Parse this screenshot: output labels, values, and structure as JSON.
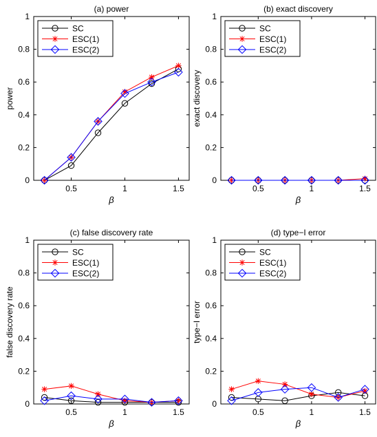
{
  "chart_data": [
    {
      "type": "line",
      "title": "(a) power",
      "xlabel": "β",
      "ylabel": "power",
      "xlim": [
        0.15,
        1.6
      ],
      "ylim": [
        0,
        1
      ],
      "xticks": [
        0.5,
        1,
        1.5
      ],
      "xtick_labels": [
        "0.5",
        "1",
        "1.5"
      ],
      "yticks": [
        0,
        0.2,
        0.4,
        0.6,
        0.8,
        1
      ],
      "ytick_labels": [
        "0",
        "0.2",
        "0.4",
        "0.6",
        "0.8",
        "1"
      ],
      "legend_position": "top-left",
      "grid": false,
      "x": [
        0.25,
        0.5,
        0.75,
        1,
        1.25,
        1.5
      ],
      "series": [
        {
          "name": "SC",
          "color": "#000000",
          "marker": "circle",
          "values": [
            0.0,
            0.09,
            0.29,
            0.47,
            0.59,
            0.68
          ]
        },
        {
          "name": "ESC(1)",
          "color": "#ff0000",
          "marker": "star",
          "values": [
            0.0,
            0.14,
            0.36,
            0.54,
            0.63,
            0.7
          ]
        },
        {
          "name": "ESC(2)",
          "color": "#0000ff",
          "marker": "diamond",
          "values": [
            0.0,
            0.14,
            0.36,
            0.53,
            0.6,
            0.66
          ]
        }
      ]
    },
    {
      "type": "line",
      "title": "(b) exact discovery",
      "xlabel": "β",
      "ylabel": "exact discovery",
      "xlim": [
        0.15,
        1.6
      ],
      "ylim": [
        0,
        1
      ],
      "xticks": [
        0.5,
        1,
        1.5
      ],
      "xtick_labels": [
        "0.5",
        "1",
        "1.5"
      ],
      "yticks": [
        0,
        0.2,
        0.4,
        0.6,
        0.8,
        1
      ],
      "ytick_labels": [
        "0",
        "0.2",
        "0.4",
        "0.6",
        "0.8",
        "1"
      ],
      "legend_position": "top-left",
      "grid": false,
      "x": [
        0.25,
        0.5,
        0.75,
        1,
        1.25,
        1.5
      ],
      "series": [
        {
          "name": "SC",
          "color": "#000000",
          "marker": "circle",
          "values": [
            0,
            0,
            0,
            0,
            0,
            0
          ]
        },
        {
          "name": "ESC(1)",
          "color": "#ff0000",
          "marker": "star",
          "values": [
            0,
            0,
            0,
            0,
            0,
            0.01
          ]
        },
        {
          "name": "ESC(2)",
          "color": "#0000ff",
          "marker": "diamond",
          "values": [
            0,
            0,
            0,
            0,
            0,
            0
          ]
        }
      ]
    },
    {
      "type": "line",
      "title": "(c) false discovery rate",
      "xlabel": "β",
      "ylabel": "false discovery rate",
      "xlim": [
        0.15,
        1.6
      ],
      "ylim": [
        0,
        1
      ],
      "xticks": [
        0.5,
        1,
        1.5
      ],
      "xtick_labels": [
        "0.5",
        "1",
        "1.5"
      ],
      "yticks": [
        0,
        0.2,
        0.4,
        0.6,
        0.8,
        1
      ],
      "ytick_labels": [
        "0",
        "0.2",
        "0.4",
        "0.6",
        "0.8",
        "1"
      ],
      "legend_position": "top-left",
      "grid": false,
      "x": [
        0.25,
        0.5,
        0.75,
        1,
        1.25,
        1.5
      ],
      "series": [
        {
          "name": "SC",
          "color": "#000000",
          "marker": "circle",
          "values": [
            0.04,
            0.02,
            0.01,
            0.01,
            0.01,
            0.01
          ]
        },
        {
          "name": "ESC(1)",
          "color": "#ff0000",
          "marker": "star",
          "values": [
            0.09,
            0.11,
            0.06,
            0.02,
            0.01,
            0.02
          ]
        },
        {
          "name": "ESC(2)",
          "color": "#0000ff",
          "marker": "diamond",
          "values": [
            0.02,
            0.05,
            0.03,
            0.03,
            0.01,
            0.02
          ]
        }
      ]
    },
    {
      "type": "line",
      "title": "(d) type−I error",
      "xlabel": "β",
      "ylabel": "type−I error",
      "xlim": [
        0.15,
        1.6
      ],
      "ylim": [
        0,
        1
      ],
      "xticks": [
        0.5,
        1,
        1.5
      ],
      "xtick_labels": [
        "0.5",
        "1",
        "1.5"
      ],
      "yticks": [
        0,
        0.2,
        0.4,
        0.6,
        0.8,
        1
      ],
      "ytick_labels": [
        "0",
        "0.2",
        "0.4",
        "0.6",
        "0.8",
        "1"
      ],
      "legend_position": "top-left",
      "grid": false,
      "x": [
        0.25,
        0.5,
        0.75,
        1,
        1.25,
        1.5
      ],
      "series": [
        {
          "name": "SC",
          "color": "#000000",
          "marker": "circle",
          "values": [
            0.04,
            0.03,
            0.02,
            0.05,
            0.07,
            0.05
          ]
        },
        {
          "name": "ESC(1)",
          "color": "#ff0000",
          "marker": "star",
          "values": [
            0.09,
            0.14,
            0.12,
            0.06,
            0.04,
            0.08
          ]
        },
        {
          "name": "ESC(2)",
          "color": "#0000ff",
          "marker": "diamond",
          "values": [
            0.02,
            0.07,
            0.09,
            0.1,
            0.04,
            0.09
          ]
        }
      ]
    }
  ]
}
